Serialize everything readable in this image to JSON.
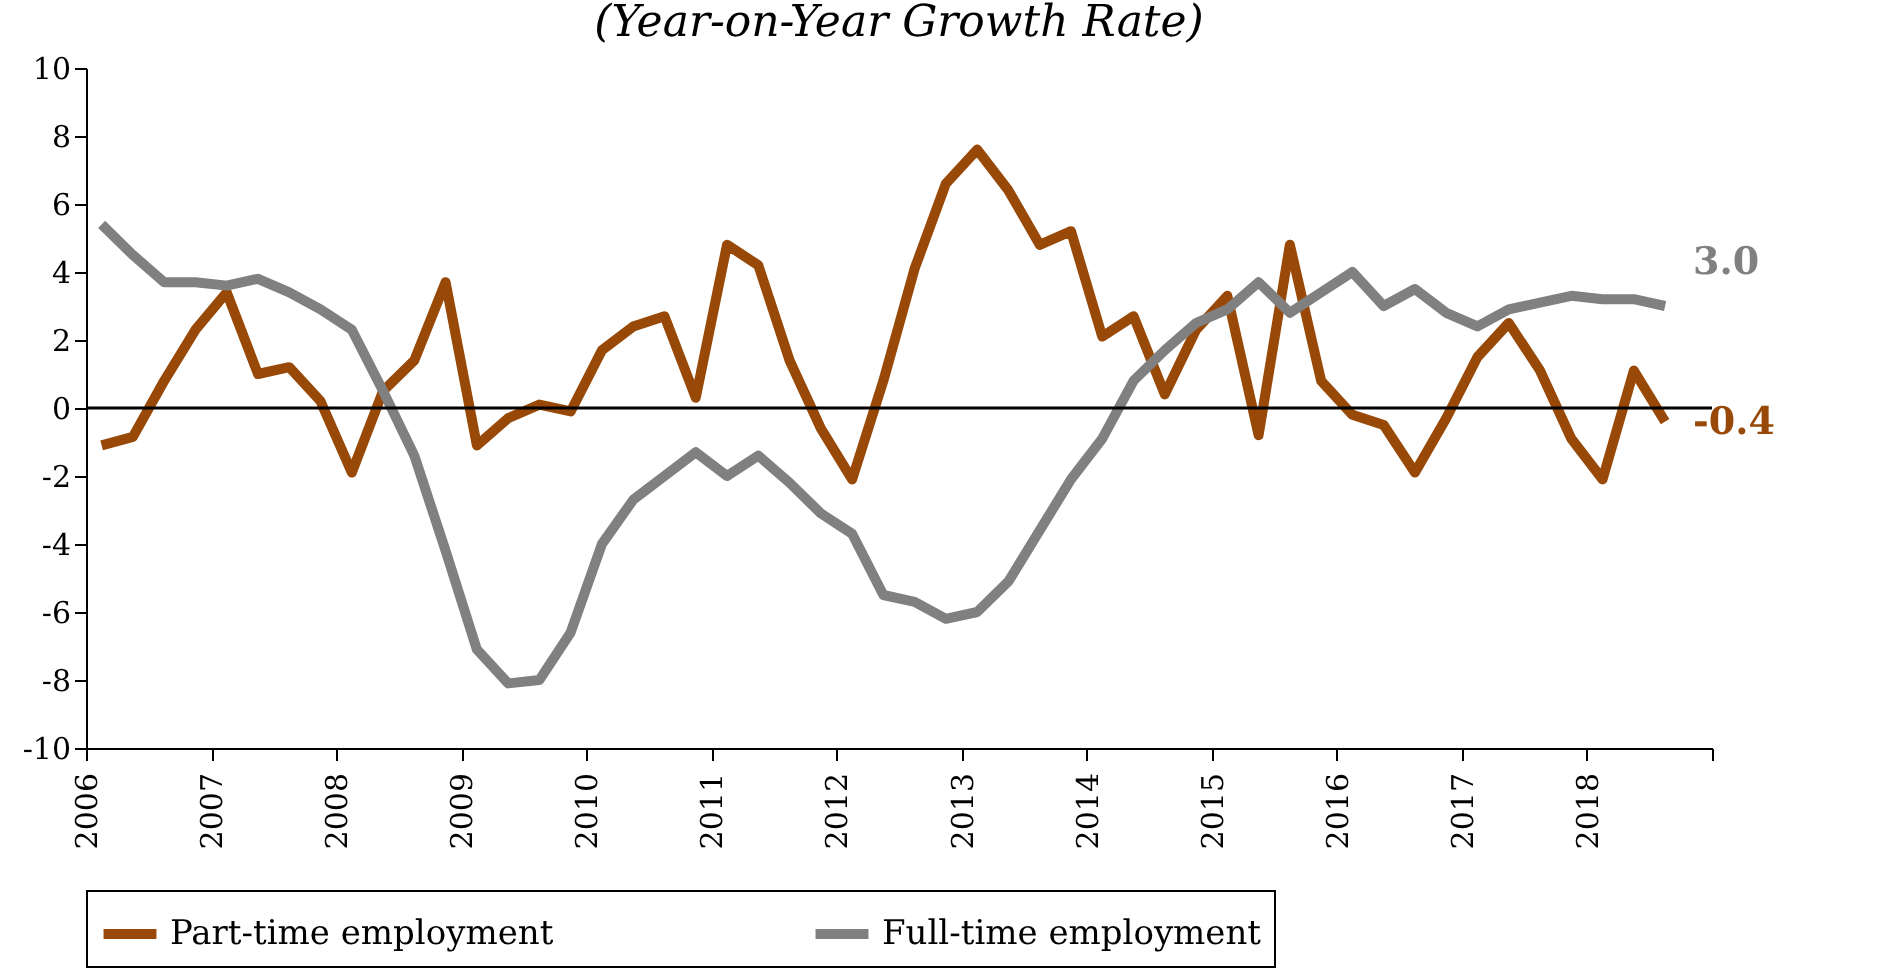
{
  "chart_data": {
    "type": "line",
    "title": "(Year-on-Year Growth Rate)",
    "x": [
      2006.125,
      2006.375,
      2006.625,
      2006.875,
      2007.125,
      2007.375,
      2007.625,
      2007.875,
      2008.125,
      2008.375,
      2008.625,
      2008.875,
      2009.125,
      2009.375,
      2009.625,
      2009.875,
      2010.125,
      2010.375,
      2010.625,
      2010.875,
      2011.125,
      2011.375,
      2011.625,
      2011.875,
      2012.125,
      2012.375,
      2012.625,
      2012.875,
      2013.125,
      2013.375,
      2013.625,
      2013.875,
      2014.125,
      2014.375,
      2014.625,
      2014.875,
      2015.125,
      2015.375,
      2015.625,
      2015.875,
      2016.125,
      2016.375,
      2016.625,
      2016.875,
      2017.125,
      2017.375,
      2017.625,
      2017.875,
      2018.125,
      2018.375,
      2018.625
    ],
    "series": [
      {
        "name": "Part-time employment",
        "color": "#984807",
        "values": [
          -1.1,
          -0.85,
          0.8,
          2.3,
          3.4,
          1.0,
          1.2,
          0.2,
          -1.9,
          0.5,
          1.4,
          3.7,
          -1.1,
          -0.3,
          0.1,
          -0.1,
          1.7,
          2.4,
          2.7,
          0.3,
          4.8,
          4.2,
          1.4,
          -0.6,
          -2.1,
          0.8,
          4.1,
          6.6,
          7.6,
          6.4,
          4.8,
          5.2,
          2.1,
          2.7,
          0.4,
          2.3,
          3.3,
          -0.8,
          4.8,
          0.8,
          -0.2,
          -0.5,
          -1.9,
          -0.3,
          1.5,
          2.5,
          1.1,
          -0.9,
          -2.1,
          1.1,
          -0.4
        ]
      },
      {
        "name": "Full-time employment",
        "color": "#808080",
        "values": [
          5.4,
          4.5,
          3.7,
          3.7,
          3.6,
          3.8,
          3.4,
          2.9,
          2.3,
          0.5,
          -1.4,
          -4.2,
          -7.1,
          -8.1,
          -8.0,
          -6.6,
          -4.0,
          -2.7,
          -2.0,
          -1.3,
          -2.0,
          -1.4,
          -2.2,
          -3.1,
          -3.7,
          -5.5,
          -5.7,
          -6.2,
          -6.0,
          -5.1,
          -3.6,
          -2.1,
          -0.9,
          0.8,
          1.7,
          2.5,
          2.9,
          3.7,
          2.8,
          3.4,
          4.0,
          3.0,
          3.5,
          2.8,
          2.4,
          2.9,
          3.1,
          3.3,
          3.2,
          3.2,
          3.0
        ]
      }
    ],
    "annotations": [
      {
        "text": "-0.4",
        "x": 2018.625,
        "y": -0.4
      },
      {
        "text": "3.0",
        "x": 2018.625,
        "y": 3.0
      }
    ],
    "xlim": [
      2006,
      2019
    ],
    "xticks": [
      2006,
      2007,
      2008,
      2009,
      2010,
      2011,
      2012,
      2013,
      2014,
      2015,
      2016,
      2017,
      2018,
      {
        "value": 2019,
        "label": null
      }
    ],
    "ylim": [
      -10,
      10
    ],
    "yticks": [
      -10,
      -8,
      -6,
      -4,
      -2,
      0,
      2,
      4,
      6,
      8,
      10
    ],
    "ref_lines": [
      {
        "axis": "y",
        "value": 0,
        "color": "#000000"
      }
    ],
    "legend": "bottom",
    "grid": false,
    "line_style": "solid",
    "marker": "none"
  }
}
